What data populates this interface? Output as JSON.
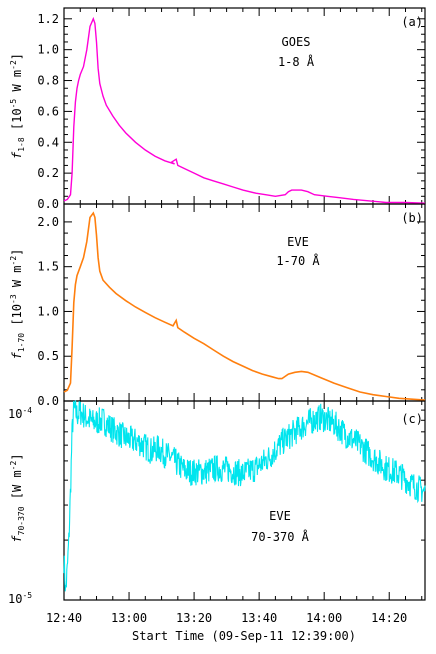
{
  "figure": {
    "xlabel": "Start Time (09-Sep-11 12:39:00)",
    "x_tick_labels": [
      "12:40",
      "13:00",
      "13:20",
      "13:40",
      "14:00",
      "14:20"
    ]
  },
  "panels": [
    {
      "panel_label": "(a)",
      "annotation_line1": "GOES",
      "annotation_line2": "1-8 Å",
      "ylabel_symbol": "f",
      "ylabel_sub": "1-8",
      "ylabel_units": " [10",
      "ylabel_exp": "-5",
      "ylabel_units2": " W m",
      "ylabel_exp2": "-2",
      "ylabel_close": "]",
      "y_tick_labels": [
        "0.0",
        "0.2",
        "0.4",
        "0.6",
        "0.8",
        "1.0",
        "1.2"
      ]
    },
    {
      "panel_label": "(b)",
      "annotation_line1": "EVE",
      "annotation_line2": "1-70 Å",
      "ylabel_symbol": "f",
      "ylabel_sub": "1-70",
      "ylabel_units": " [10",
      "ylabel_exp": "-3",
      "ylabel_units2": " W m",
      "ylabel_exp2": "-2",
      "ylabel_close": "]",
      "y_tick_labels": [
        "0.0",
        "0.5",
        "1.0",
        "1.5",
        "2.0"
      ]
    },
    {
      "panel_label": "(c)",
      "annotation_line1": "EVE",
      "annotation_line2": "70-370 Å",
      "ylabel_symbol": "f",
      "ylabel_sub": "70-370",
      "ylabel_units": " [W m",
      "ylabel_exp": "-2",
      "ylabel_close": "]",
      "y_tick_base_top": "10",
      "y_tick_exp_top": "-4",
      "y_tick_base_bottom": "10",
      "y_tick_exp_bottom": "-5"
    }
  ],
  "chart_data": [
    {
      "type": "line",
      "ylim": [
        0,
        1.27
      ],
      "xlim": [
        1,
        112
      ],
      "x_unit": "minutes since 12:39:00",
      "series": [
        {
          "color": "#ff00d8",
          "x": [
            1,
            2,
            3,
            3.5,
            4,
            4.5,
            5,
            5.5,
            6,
            7,
            8,
            9,
            10,
            10.5,
            11,
            11.5,
            12,
            13,
            14,
            16,
            18,
            20,
            23,
            26,
            29,
            32,
            35,
            34,
            35.5,
            36,
            38,
            41,
            44,
            47,
            50,
            53,
            56,
            60,
            63,
            66,
            69,
            70,
            71,
            72,
            74,
            76,
            78,
            82,
            86,
            90,
            95,
            100,
            106,
            112
          ],
          "y": [
            0.02,
            0.03,
            0.06,
            0.2,
            0.5,
            0.66,
            0.75,
            0.8,
            0.84,
            0.89,
            1.0,
            1.15,
            1.2,
            1.17,
            1.05,
            0.88,
            0.78,
            0.7,
            0.64,
            0.57,
            0.51,
            0.46,
            0.4,
            0.35,
            0.31,
            0.28,
            0.26,
            0.27,
            0.29,
            0.25,
            0.23,
            0.2,
            0.17,
            0.15,
            0.13,
            0.11,
            0.09,
            0.07,
            0.06,
            0.05,
            0.06,
            0.08,
            0.09,
            0.09,
            0.09,
            0.08,
            0.06,
            0.05,
            0.04,
            0.03,
            0.02,
            0.01,
            0.01,
            0.005
          ]
        }
      ]
    },
    {
      "type": "line",
      "ylim": [
        0,
        2.2
      ],
      "xlim": [
        1,
        112
      ],
      "x_unit": "minutes since 12:39:00",
      "series": [
        {
          "color": "#ff7f0e",
          "x": [
            1,
            2,
            3,
            3.5,
            4,
            4.5,
            5,
            6,
            7,
            8,
            9,
            10,
            10.5,
            11,
            11.5,
            12,
            13,
            15,
            17,
            20,
            23,
            26,
            29,
            32,
            34.5,
            35.5,
            36,
            38,
            41,
            44,
            47,
            50,
            53,
            56,
            59,
            62,
            65,
            67,
            68,
            70,
            72,
            74,
            76,
            80,
            84,
            88,
            92,
            96,
            100,
            104,
            108,
            112
          ],
          "y": [
            0.1,
            0.12,
            0.2,
            0.6,
            1.1,
            1.3,
            1.4,
            1.5,
            1.6,
            1.78,
            2.05,
            2.1,
            2.05,
            1.85,
            1.6,
            1.45,
            1.35,
            1.27,
            1.2,
            1.12,
            1.05,
            0.99,
            0.93,
            0.88,
            0.84,
            0.9,
            0.82,
            0.77,
            0.7,
            0.64,
            0.57,
            0.5,
            0.44,
            0.39,
            0.34,
            0.3,
            0.27,
            0.25,
            0.25,
            0.3,
            0.32,
            0.33,
            0.32,
            0.26,
            0.2,
            0.15,
            0.1,
            0.07,
            0.05,
            0.03,
            0.02,
            0.01
          ]
        }
      ]
    },
    {
      "type": "line",
      "yscale": "log",
      "ylim": [
        1e-05,
        0.0001
      ],
      "xlim": [
        1,
        112
      ],
      "x_unit": "minutes since 12:39:00",
      "series": [
        {
          "color": "#00e5ee",
          "x": [
            1,
            1.5,
            2,
            2.5,
            3,
            3.5,
            4,
            5,
            6,
            8,
            10,
            13,
            16,
            20,
            24,
            28,
            30,
            32,
            34,
            36,
            38,
            40,
            44,
            48,
            52,
            56,
            60,
            64,
            68,
            72,
            76,
            80,
            84,
            88,
            92,
            96,
            100,
            104,
            108,
            112
          ],
          "y": [
            1.6e-05,
            1.1e-05,
            1.4e-05,
            2e-05,
            3.5e-05,
            7e-05,
            9.2e-05,
            8.5e-05,
            8.8e-05,
            8.2e-05,
            7.8e-05,
            8e-05,
            7.2e-05,
            6.5e-05,
            6.2e-05,
            5.6e-05,
            5.8e-05,
            5.4e-05,
            5.2e-05,
            4.8e-05,
            4.5e-05,
            4.4e-05,
            4.4e-05,
            4.6e-05,
            4.5e-05,
            4.3e-05,
            4.6e-05,
            5.2e-05,
            6.2e-05,
            7e-05,
            7.8e-05,
            8.3e-05,
            7.7e-05,
            6.7e-05,
            6e-05,
            5.2e-05,
            4.6e-05,
            4.3e-05,
            3.8e-05,
            3.5e-05
          ]
        }
      ]
    }
  ]
}
